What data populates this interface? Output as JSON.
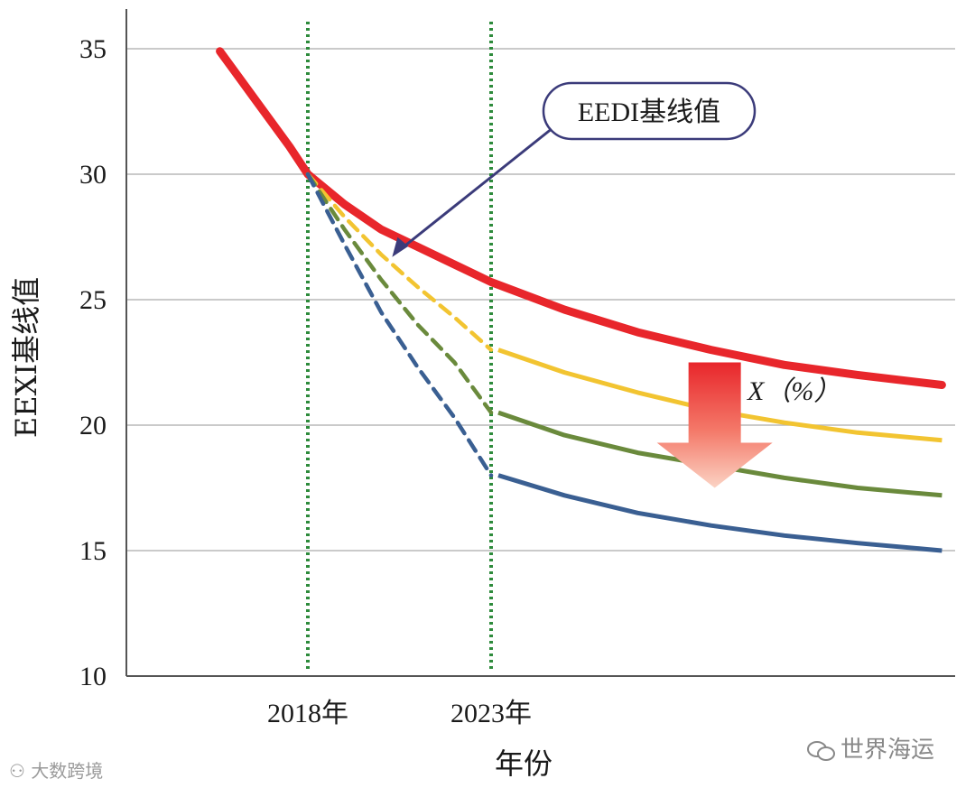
{
  "chart_data": {
    "type": "line",
    "xlabel": "年份",
    "ylabel": "EEXI基线值",
    "ylim": [
      10,
      35
    ],
    "yticks": [
      10,
      15,
      20,
      25,
      30,
      35
    ],
    "x_markers": [
      {
        "label": "2018年",
        "x": 2018
      },
      {
        "label": "2023年",
        "x": 2023
      }
    ],
    "grid": true,
    "series": [
      {
        "name": "EEDI基线值",
        "color": "#e8262b",
        "x": [
          2015.6,
          2016.5,
          2017.5,
          2018,
          2019,
          2020,
          2021,
          2022,
          2023,
          2025,
          2027,
          2029,
          2031,
          2033,
          2035.3
        ],
        "y": [
          34.9,
          33.1,
          31.1,
          30.0,
          28.8,
          27.8,
          27.1,
          26.4,
          25.7,
          24.6,
          23.7,
          23.0,
          22.4,
          22.0,
          21.6
        ]
      },
      {
        "name": "",
        "color": "#f2c431",
        "dashed_until": 2023,
        "x": [
          2018,
          2019,
          2020,
          2021,
          2022,
          2023,
          2025,
          2027,
          2029,
          2031,
          2033,
          2035.3
        ],
        "y": [
          30.0,
          28.3,
          26.8,
          25.5,
          24.3,
          23.0,
          22.1,
          21.3,
          20.6,
          20.1,
          19.7,
          19.4
        ]
      },
      {
        "name": "",
        "color": "#6a8a3c",
        "dashed_until": 2023,
        "x": [
          2018,
          2019,
          2020,
          2021,
          2022,
          2023,
          2025,
          2027,
          2029,
          2031,
          2033,
          2035.3
        ],
        "y": [
          30.0,
          27.8,
          25.8,
          24.0,
          22.5,
          20.5,
          19.6,
          18.9,
          18.4,
          17.9,
          17.5,
          17.2
        ]
      },
      {
        "name": "",
        "color": "#3a5f92",
        "dashed_until": 2023,
        "x": [
          2018,
          2019,
          2020,
          2021,
          2022,
          2023,
          2025,
          2027,
          2029,
          2031,
          2033,
          2035.3
        ],
        "y": [
          30.0,
          27.2,
          24.5,
          22.3,
          20.3,
          18.0,
          17.2,
          16.5,
          16.0,
          15.6,
          15.3,
          15.0
        ]
      }
    ],
    "annotations": [
      {
        "text": "EEDI基线值",
        "points_to": {
          "x": 2020.3,
          "y": 26.7
        }
      },
      {
        "text": "X（%）",
        "arrow_from_y": 22.5,
        "arrow_to_y": 17.5,
        "x": 2029.1
      }
    ]
  },
  "watermarks": {
    "left": "大数跨境",
    "right": "世界海运"
  }
}
